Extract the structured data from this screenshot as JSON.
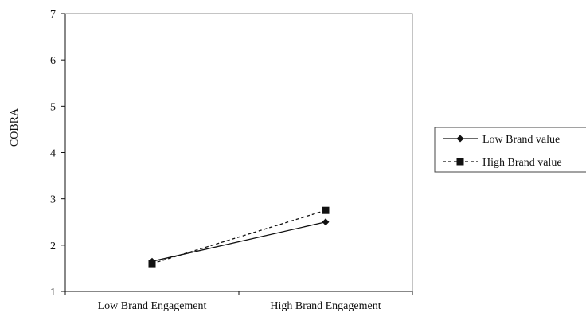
{
  "chart_data": {
    "type": "line",
    "title": "",
    "xlabel": "",
    "ylabel": "COBRA",
    "categories": [
      "Low Brand Engagement",
      "High Brand Engagement"
    ],
    "ylim": [
      1,
      7
    ],
    "yticks": [
      1,
      2,
      3,
      4,
      5,
      6,
      7
    ],
    "grid": false,
    "legend_position": "right",
    "series": [
      {
        "name": "Low Brand value",
        "values": [
          1.65,
          2.5
        ],
        "line_style": "solid",
        "marker": "diamond",
        "color": "#111111"
      },
      {
        "name": "High Brand value",
        "values": [
          1.6,
          2.75
        ],
        "line_style": "dashed",
        "marker": "square",
        "color": "#111111"
      }
    ]
  }
}
